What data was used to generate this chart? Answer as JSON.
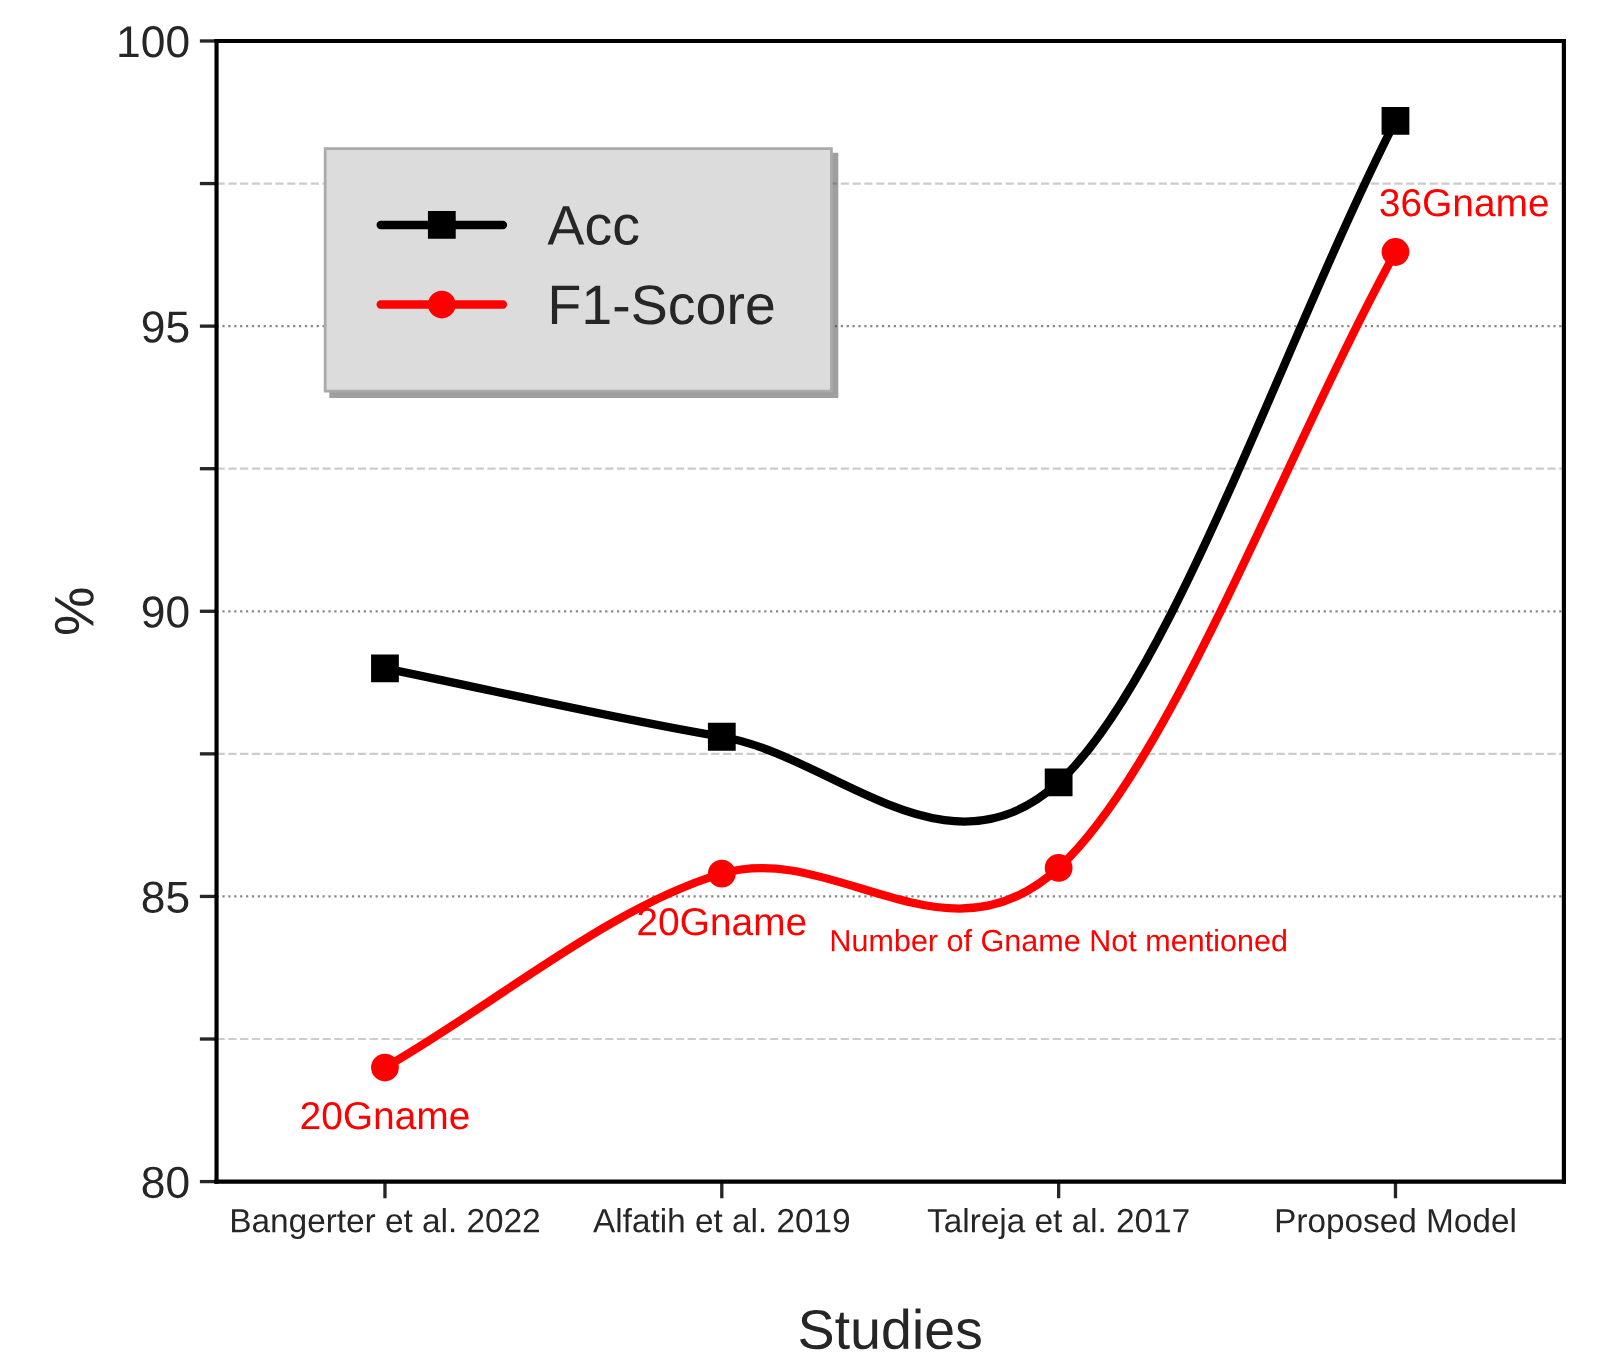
{
  "chart_data": {
    "type": "line",
    "xlabel": "Studies",
    "ylabel": "%",
    "categories": [
      "Bangerter et al. 2022",
      "Alfatih et al. 2019",
      "Talreja et al. 2017",
      "Proposed Model"
    ],
    "series": [
      {
        "name": "Acc",
        "color": "#000000",
        "marker": "square",
        "values": [
          89.0,
          87.8,
          87.0,
          98.6
        ]
      },
      {
        "name": "F1-Score",
        "color": "#ff0000",
        "marker": "circle",
        "values": [
          82.0,
          85.4,
          85.5,
          96.3
        ]
      }
    ],
    "ylim": [
      80,
      100
    ],
    "yticks": [
      80,
      {
        "value": 82.5,
        "label": null
      },
      85,
      {
        "value": 87.5,
        "label": null
      },
      90,
      {
        "value": 92.5,
        "label": null
      },
      95,
      {
        "value": 97.5,
        "label": null
      },
      100
    ],
    "grid": "y",
    "legend": "top left",
    "line_style": "solid",
    "annotations": [
      {
        "text": "20Gname",
        "x": "Bangerter et al. 2022",
        "y": 82.0
      },
      {
        "text": "20Gname",
        "x": "Alfatih et al. 2019",
        "y": 85.4
      },
      {
        "text": "Number of Gname Not mentioned",
        "x": "Talreja et al. 2017",
        "y": 85.5
      },
      {
        "text": "36Gname",
        "x": "Proposed Model",
        "y": 96.3
      }
    ]
  }
}
